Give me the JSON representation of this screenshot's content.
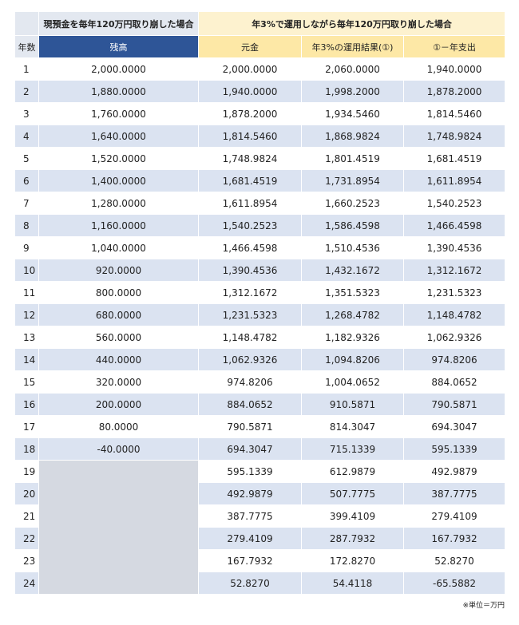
{
  "table": {
    "group_headers": {
      "left": "現預金を毎年120万円取り崩した場合",
      "right": "年3%で運用しながら毎年120万円取り崩した場合"
    },
    "columns": {
      "year": "年数",
      "balance": "残高",
      "principal": "元金",
      "result": "年3%の運用結果(①)",
      "expense": "①－年支出"
    },
    "rows": [
      {
        "year": "1",
        "balance": "2,000.0000",
        "principal": "2,000.0000",
        "result": "2,060.0000",
        "expense": "1,940.0000"
      },
      {
        "year": "2",
        "balance": "1,880.0000",
        "principal": "1,940.0000",
        "result": "1,998.2000",
        "expense": "1,878.2000"
      },
      {
        "year": "3",
        "balance": "1,760.0000",
        "principal": "1,878.2000",
        "result": "1,934.5460",
        "expense": "1,814.5460"
      },
      {
        "year": "4",
        "balance": "1,640.0000",
        "principal": "1,814.5460",
        "result": "1,868.9824",
        "expense": "1,748.9824"
      },
      {
        "year": "5",
        "balance": "1,520.0000",
        "principal": "1,748.9824",
        "result": "1,801.4519",
        "expense": "1,681.4519"
      },
      {
        "year": "6",
        "balance": "1,400.0000",
        "principal": "1,681.4519",
        "result": "1,731.8954",
        "expense": "1,611.8954"
      },
      {
        "year": "7",
        "balance": "1,280.0000",
        "principal": "1,611.8954",
        "result": "1,660.2523",
        "expense": "1,540.2523"
      },
      {
        "year": "8",
        "balance": "1,160.0000",
        "principal": "1,540.2523",
        "result": "1,586.4598",
        "expense": "1,466.4598"
      },
      {
        "year": "9",
        "balance": "1,040.0000",
        "principal": "1,466.4598",
        "result": "1,510.4536",
        "expense": "1,390.4536"
      },
      {
        "year": "10",
        "balance": "920.0000",
        "principal": "1,390.4536",
        "result": "1,432.1672",
        "expense": "1,312.1672"
      },
      {
        "year": "11",
        "balance": "800.0000",
        "principal": "1,312.1672",
        "result": "1,351.5323",
        "expense": "1,231.5323"
      },
      {
        "year": "12",
        "balance": "680.0000",
        "principal": "1,231.5323",
        "result": "1,268.4782",
        "expense": "1,148.4782"
      },
      {
        "year": "13",
        "balance": "560.0000",
        "principal": "1,148.4782",
        "result": "1,182.9326",
        "expense": "1,062.9326"
      },
      {
        "year": "14",
        "balance": "440.0000",
        "principal": "1,062.9326",
        "result": "1,094.8206",
        "expense": "974.8206"
      },
      {
        "year": "15",
        "balance": "320.0000",
        "principal": "974.8206",
        "result": "1,004.0652",
        "expense": "884.0652"
      },
      {
        "year": "16",
        "balance": "200.0000",
        "principal": "884.0652",
        "result": "910.5871",
        "expense": "790.5871"
      },
      {
        "year": "17",
        "balance": "80.0000",
        "principal": "790.5871",
        "result": "814.3047",
        "expense": "694.3047"
      },
      {
        "year": "18",
        "balance": "-40.0000",
        "principal": "694.3047",
        "result": "715.1339",
        "expense": "595.1339"
      },
      {
        "year": "19",
        "principal": "595.1339",
        "result": "612.9879",
        "expense": "492.9879"
      },
      {
        "year": "20",
        "principal": "492.9879",
        "result": "507.7775",
        "expense": "387.7775"
      },
      {
        "year": "21",
        "principal": "387.7775",
        "result": "399.4109",
        "expense": "279.4109"
      },
      {
        "year": "22",
        "principal": "279.4109",
        "result": "287.7932",
        "expense": "167.7932"
      },
      {
        "year": "23",
        "principal": "167.7932",
        "result": "172.8270",
        "expense": "52.8270"
      },
      {
        "year": "24",
        "principal": "52.8270",
        "result": "54.4118",
        "expense": "-65.5882"
      }
    ],
    "footnote": "※単位＝万円"
  }
}
